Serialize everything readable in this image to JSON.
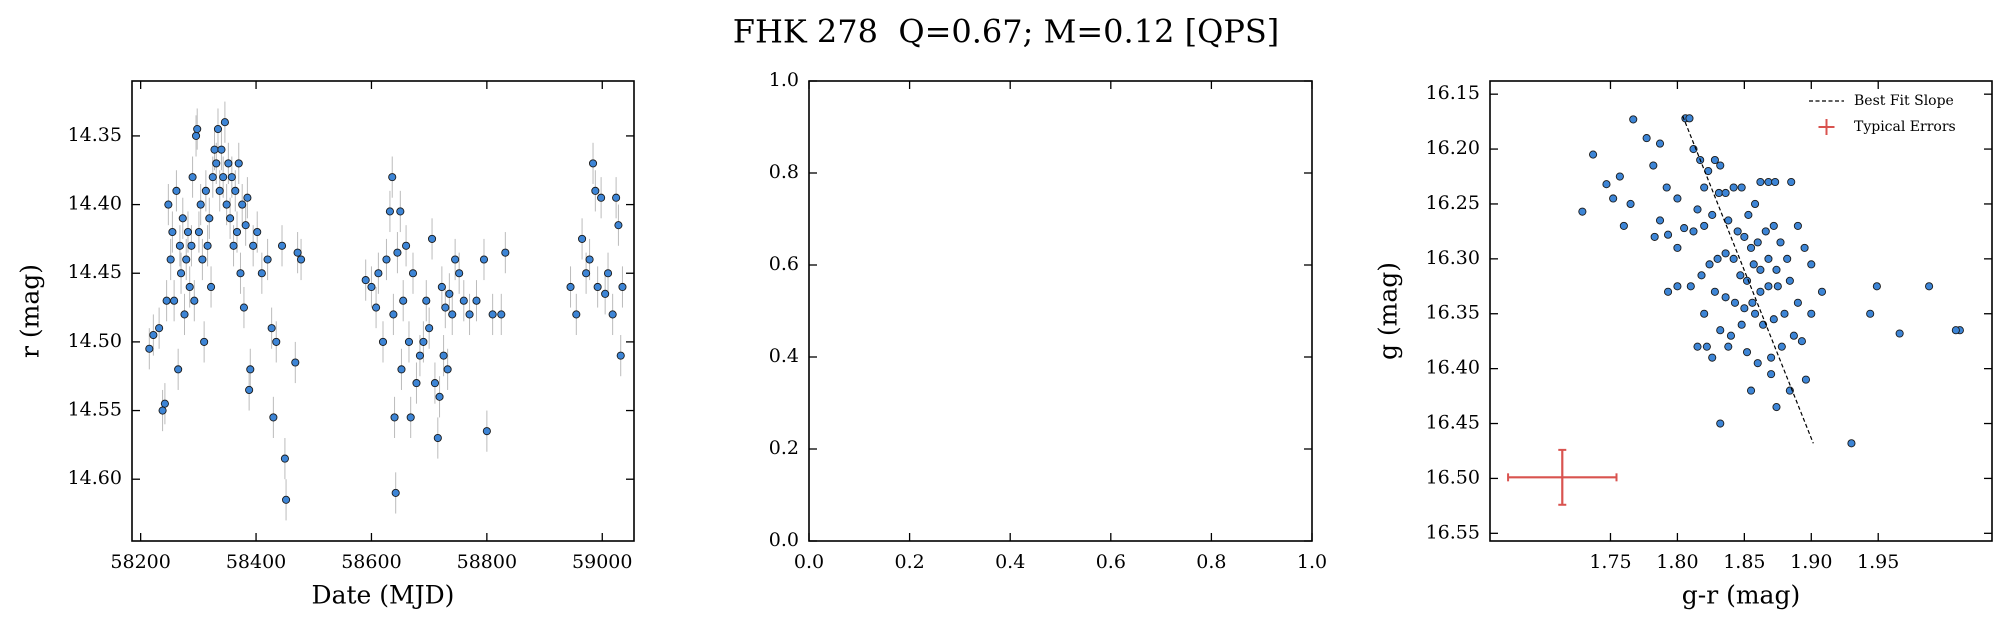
{
  "title": "FHK 278  Q=0.67; M=0.12 [QPS]",
  "chart_data": [
    {
      "type": "scatter",
      "x_label": "Date (MJD)",
      "y_label": "r (mag)",
      "xlim": [
        58185,
        59055
      ],
      "xticks": [
        58200,
        58400,
        58600,
        58800,
        59000
      ],
      "ylim": [
        14.31,
        14.645
      ],
      "y_inverted": true,
      "yticks": [
        14.35,
        {
          "value": 14.4,
          "label": "14.40"
        },
        14.45,
        {
          "value": 14.5,
          "label": "14.50"
        },
        14.55,
        {
          "value": 14.6,
          "label": "14.60"
        }
      ],
      "series": [
        {
          "color": "#3d85d6",
          "error_color": "#bbbbbb",
          "yerr": 0.015,
          "x": [
            58215,
            58222,
            58232,
            58238,
            58242,
            58245,
            58248,
            58252,
            58255,
            58258,
            58262,
            58265,
            58268,
            58270,
            58273,
            58276,
            58279,
            58282,
            58285,
            58288,
            58290,
            58293,
            58296,
            58298,
            58301,
            58304,
            58307,
            58310,
            58313,
            58316,
            58319,
            58322,
            58325,
            58328,
            58331,
            58334,
            58337,
            58340,
            58343,
            58346,
            58349,
            58352,
            58355,
            58358,
            58361,
            58364,
            58367,
            58370,
            58373,
            58376,
            58379,
            58382,
            58385,
            58388,
            58390,
            58395,
            58402,
            58410,
            58420,
            58427,
            58430,
            58435,
            58445,
            58450,
            58452,
            58468,
            58472,
            58478,
            58590,
            58600,
            58608,
            58612,
            58620,
            58626,
            58632,
            58636,
            58638,
            58640,
            58642,
            58645,
            58650,
            58652,
            58655,
            58660,
            58665,
            58668,
            58672,
            58678,
            58684,
            58690,
            58695,
            58700,
            58705,
            58710,
            58715,
            58718,
            58722,
            58725,
            58728,
            58732,
            58735,
            58740,
            58745,
            58752,
            58760,
            58770,
            58782,
            58795,
            58800,
            58810,
            58825,
            58832,
            58945,
            58955,
            58965,
            58972,
            58978,
            58984,
            58988,
            58992,
            58998,
            59005,
            59010,
            59018,
            59024,
            59028,
            59032,
            59035
          ],
          "values": [
            14.505,
            14.495,
            14.49,
            14.55,
            14.545,
            14.47,
            14.4,
            14.44,
            14.42,
            14.47,
            14.39,
            14.52,
            14.43,
            14.45,
            14.41,
            14.48,
            14.44,
            14.42,
            14.46,
            14.43,
            14.38,
            14.47,
            14.35,
            14.345,
            14.42,
            14.4,
            14.44,
            14.5,
            14.39,
            14.43,
            14.41,
            14.46,
            14.38,
            14.36,
            14.37,
            14.345,
            14.39,
            14.36,
            14.38,
            14.34,
            14.4,
            14.37,
            14.41,
            14.38,
            14.43,
            14.39,
            14.42,
            14.37,
            14.45,
            14.4,
            14.475,
            14.415,
            14.395,
            14.535,
            14.52,
            14.43,
            14.42,
            14.45,
            14.44,
            14.49,
            14.555,
            14.5,
            14.43,
            14.585,
            14.615,
            14.515,
            14.435,
            14.44,
            14.455,
            14.46,
            14.475,
            14.45,
            14.5,
            14.44,
            14.405,
            14.38,
            14.48,
            14.555,
            14.61,
            14.435,
            14.405,
            14.52,
            14.47,
            14.43,
            14.5,
            14.555,
            14.45,
            14.53,
            14.51,
            14.5,
            14.47,
            14.49,
            14.425,
            14.53,
            14.57,
            14.54,
            14.46,
            14.51,
            14.475,
            14.52,
            14.465,
            14.48,
            14.44,
            14.45,
            14.47,
            14.48,
            14.47,
            14.44,
            14.565,
            14.48,
            14.48,
            14.435,
            14.46,
            14.48,
            14.425,
            14.45,
            14.44,
            14.37,
            14.39,
            14.46,
            14.395,
            14.465,
            14.45,
            14.48,
            14.395,
            14.415,
            14.51,
            14.46
          ]
        }
      ]
    },
    {
      "type": "empty",
      "xlim": [
        0,
        1
      ],
      "ylim": [
        0,
        1
      ],
      "xticks": [
        {
          "value": 0,
          "label": "0.0"
        },
        {
          "value": 0.2,
          "label": "0.2"
        },
        {
          "value": 0.4,
          "label": "0.4"
        },
        {
          "value": 0.6,
          "label": "0.6"
        },
        {
          "value": 0.8,
          "label": "0.8"
        },
        {
          "value": 1,
          "label": "1.0"
        }
      ],
      "yticks": [
        {
          "value": 0,
          "label": "0.0"
        },
        {
          "value": 0.2,
          "label": "0.2"
        },
        {
          "value": 0.4,
          "label": "0.4"
        },
        {
          "value": 0.6,
          "label": "0.6"
        },
        {
          "value": 0.8,
          "label": "0.8"
        },
        {
          "value": 1,
          "label": "1.0"
        }
      ]
    },
    {
      "type": "scatter",
      "x_label": "g-r (mag)",
      "y_label": "g (mag)",
      "xlim": [
        1.66,
        2.035
      ],
      "xticks": [
        1.75,
        {
          "value": 1.8,
          "label": "1.80"
        },
        1.85,
        {
          "value": 1.9,
          "label": "1.90"
        },
        1.95
      ],
      "ylim": [
        16.138,
        16.557
      ],
      "y_inverted": true,
      "yticks": [
        16.15,
        {
          "value": 16.2,
          "label": "16.20"
        },
        16.25,
        {
          "value": 16.3,
          "label": "16.30"
        },
        16.35,
        {
          "value": 16.4,
          "label": "16.40"
        },
        16.45,
        {
          "value": 16.5,
          "label": "16.50"
        },
        16.55
      ],
      "legend": "upper right",
      "series": [
        {
          "color": "#3d85d6",
          "x": [
            1.729,
            1.752,
            1.737,
            1.747,
            1.757,
            1.767,
            1.777,
            1.787,
            1.782,
            1.76,
            1.765,
            1.792,
            1.8,
            1.787,
            1.793,
            1.805,
            1.812,
            1.8,
            1.783,
            1.815,
            1.82,
            1.826,
            1.806,
            1.809,
            1.812,
            1.817,
            1.823,
            1.828,
            1.832,
            1.82,
            1.831,
            1.836,
            1.842,
            1.848,
            1.853,
            1.858,
            1.862,
            1.868,
            1.838,
            1.845,
            1.85,
            1.855,
            1.86,
            1.866,
            1.872,
            1.877,
            1.882,
            1.874,
            1.868,
            1.862,
            1.857,
            1.852,
            1.847,
            1.842,
            1.836,
            1.83,
            1.824,
            1.818,
            1.828,
            1.836,
            1.843,
            1.85,
            1.856,
            1.862,
            1.868,
            1.875,
            1.884,
            1.89,
            1.88,
            1.872,
            1.864,
            1.858,
            1.848,
            1.84,
            1.832,
            1.822,
            1.815,
            1.826,
            1.838,
            1.852,
            1.86,
            1.87,
            1.878,
            1.887,
            1.893,
            1.9,
            1.896,
            1.884,
            1.87,
            1.855,
            1.82,
            1.8,
            1.81,
            1.793,
            1.832,
            1.874,
            1.93,
            1.9,
            1.908,
            1.944,
            1.949,
            1.966,
            1.988,
            2.011,
            2.008,
            1.895,
            1.89,
            1.885,
            1.873
          ],
          "values": [
            16.257,
            16.245,
            16.205,
            16.232,
            16.225,
            16.173,
            16.19,
            16.195,
            16.215,
            16.27,
            16.25,
            16.235,
            16.245,
            16.265,
            16.278,
            16.272,
            16.275,
            16.29,
            16.28,
            16.255,
            16.27,
            16.26,
            16.172,
            16.172,
            16.2,
            16.21,
            16.22,
            16.21,
            16.215,
            16.235,
            16.24,
            16.24,
            16.235,
            16.235,
            16.26,
            16.25,
            16.23,
            16.23,
            16.265,
            16.275,
            16.28,
            16.29,
            16.285,
            16.275,
            16.27,
            16.285,
            16.3,
            16.31,
            16.3,
            16.31,
            16.305,
            16.32,
            16.315,
            16.3,
            16.295,
            16.3,
            16.305,
            16.315,
            16.33,
            16.335,
            16.34,
            16.345,
            16.34,
            16.33,
            16.325,
            16.325,
            16.32,
            16.34,
            16.35,
            16.355,
            16.36,
            16.35,
            16.36,
            16.37,
            16.365,
            16.38,
            16.38,
            16.39,
            16.38,
            16.385,
            16.395,
            16.39,
            16.38,
            16.37,
            16.375,
            16.35,
            16.41,
            16.42,
            16.405,
            16.42,
            16.35,
            16.325,
            16.325,
            16.33,
            16.45,
            16.435,
            16.468,
            16.305,
            16.33,
            16.35,
            16.325,
            16.368,
            16.325,
            16.365,
            16.365,
            16.29,
            16.27,
            16.23,
            16.23
          ]
        }
      ],
      "fit_line": {
        "name": "Best Fit Slope",
        "color": "#000000",
        "x": [
          1.804,
          1.9015
        ],
        "values": [
          16.17,
          16.468
        ]
      },
      "typical_errors": {
        "name": "Typical Errors",
        "color": "#d9534f",
        "x": 1.714,
        "value": 16.499,
        "xerr": 0.0405,
        "yerr": 0.025
      }
    }
  ]
}
